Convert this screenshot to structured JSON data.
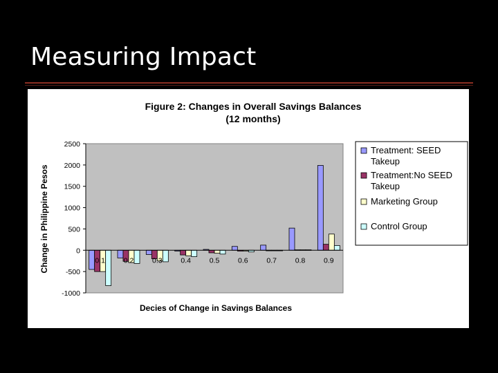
{
  "slide": {
    "title": "Measuring Impact"
  },
  "chart_data": {
    "type": "bar",
    "title": "Figure 2: Changes in Overall Savings Balances",
    "subtitle": "(12 months)",
    "xlabel": "Decies of Change in Savings Balances",
    "ylabel": "Change in Philippine Pesos",
    "ylim": [
      -1000,
      2500
    ],
    "yticks": [
      -1000,
      -500,
      0,
      500,
      1000,
      1500,
      2000,
      2500
    ],
    "ytick_labels": [
      "-1000",
      "-500",
      "0",
      "500",
      "1000",
      "1500",
      "2000",
      "2500"
    ],
    "categories": [
      "0.1",
      "0.2",
      "0.3",
      "0.4",
      "0.5",
      "0.6",
      "0.7",
      "0.8",
      "0.9"
    ],
    "grid": false,
    "legend_position": "right",
    "series": [
      {
        "name": "Treatment: SEED Takeup",
        "legend_lines": [
          "Treatment: SEED",
          "Takeup"
        ],
        "color": "#9999ff",
        "values": [
          -450,
          -180,
          -100,
          -20,
          20,
          90,
          120,
          520,
          1990
        ]
      },
      {
        "name": "Treatment:No SEED Takeup",
        "legend_lines": [
          "Treatment:No SEED",
          "Takeup"
        ],
        "color": "#993366",
        "values": [
          -500,
          -260,
          -200,
          -110,
          -60,
          -20,
          0,
          10,
          140
        ]
      },
      {
        "name": "Marketing Group",
        "legend_lines": [
          "Marketing Group"
        ],
        "color": "#ffffcc",
        "values": [
          -500,
          -290,
          -250,
          -130,
          -70,
          -20,
          0,
          10,
          380
        ]
      },
      {
        "name": "Control Group",
        "legend_lines": [
          "Control Group"
        ],
        "color": "#ccffff",
        "values": [
          -830,
          -310,
          -270,
          -150,
          -90,
          -40,
          0,
          10,
          110
        ]
      }
    ]
  }
}
